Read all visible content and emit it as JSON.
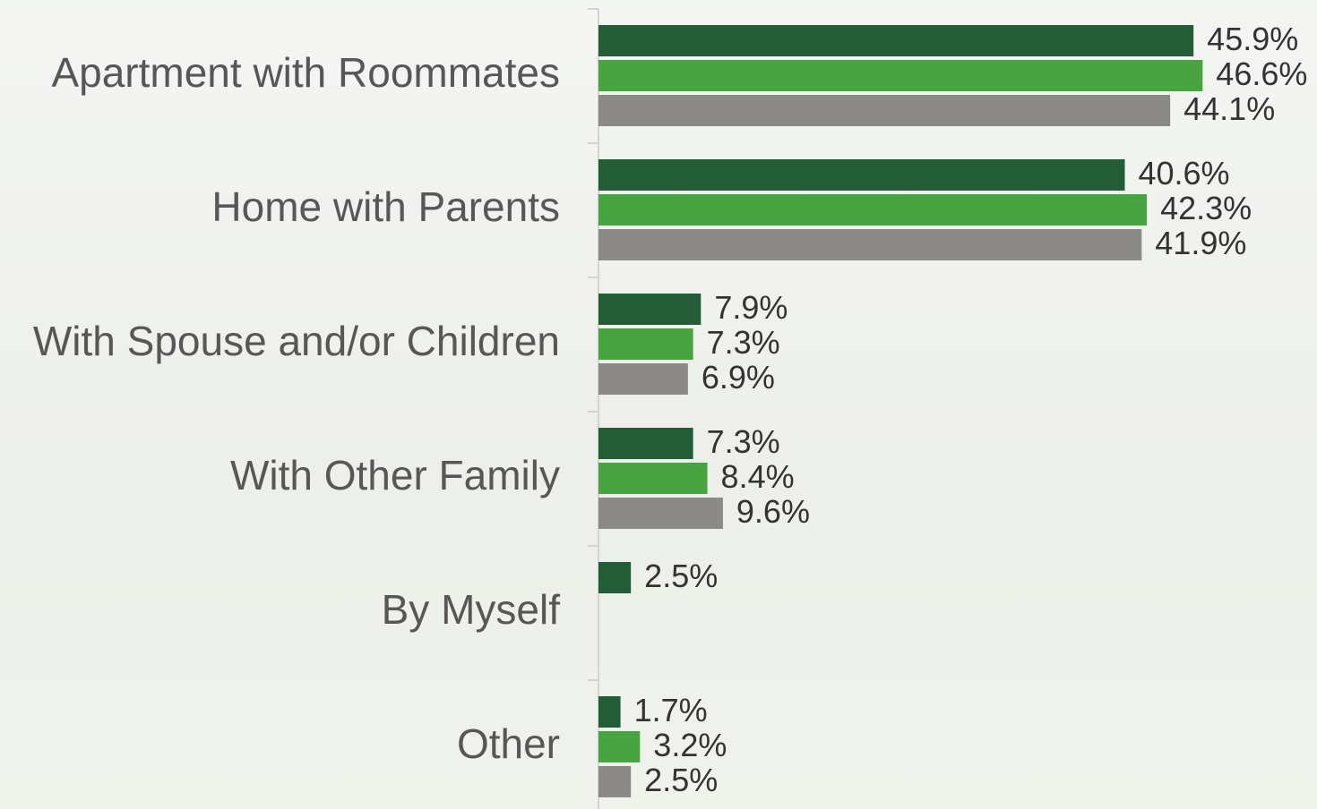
{
  "chart_data": {
    "type": "barh",
    "categories": [
      "Apartment with Roommates",
      "Home with Parents",
      "With Spouse and/or Children",
      "With Other Family",
      "By Myself",
      "Other"
    ],
    "series": [
      {
        "color": "#245c38",
        "values": [
          45.9,
          40.6,
          7.9,
          7.3,
          2.5,
          1.7
        ],
        "value_labels": [
          "45.9%",
          "40.6%",
          "7.9%",
          "7.3%",
          "2.5%",
          "1.7%"
        ]
      },
      {
        "color": "#48a441",
        "values": [
          46.6,
          42.3,
          7.3,
          8.4,
          null,
          3.2
        ],
        "value_labels": [
          "46.6%",
          "42.3%",
          "7.3%",
          "8.4%",
          null,
          "3.2%"
        ]
      },
      {
        "color": "#8b8a86",
        "values": [
          44.1,
          41.9,
          6.9,
          9.6,
          null,
          2.5
        ],
        "value_labels": [
          "44.1%",
          "41.9%",
          "6.9%",
          "9.6%",
          null,
          "2.5%"
        ]
      }
    ]
  }
}
